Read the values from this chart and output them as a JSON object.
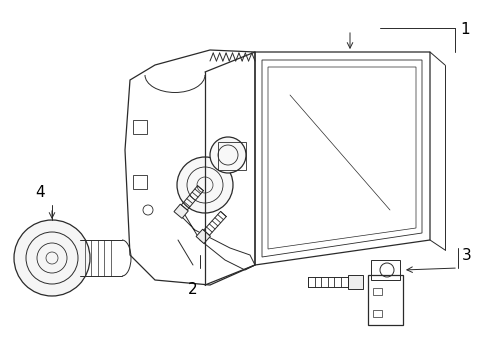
{
  "background_color": "#ffffff",
  "line_color": "#2a2a2a",
  "label_color": "#000000",
  "fig_width": 4.89,
  "fig_height": 3.6,
  "dpi": 100,
  "label_fontsize": 10
}
